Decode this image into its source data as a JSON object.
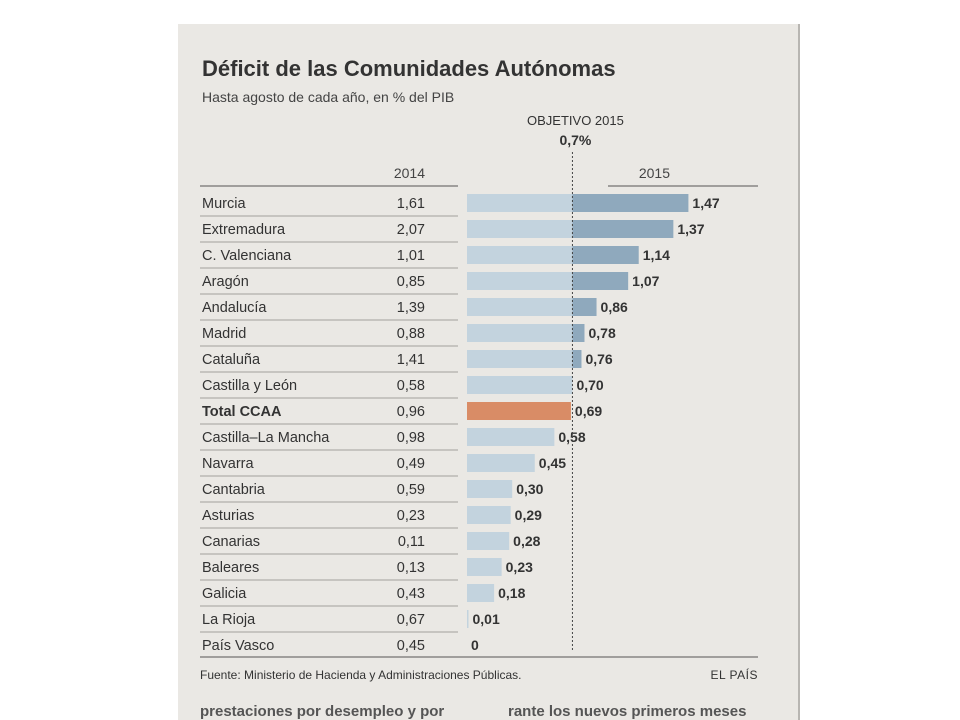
{
  "chart_data": {
    "type": "bar",
    "title": "Déficit de las Comunidades Autónomas",
    "subtitle": "Hasta agosto de cada año, en % del PIB",
    "reference": {
      "label": "OBJETIVO 2015",
      "value_label": "0,7%",
      "value": 0.7
    },
    "column_headers": {
      "y2014": "2014",
      "y2015": "2015"
    },
    "orientation": "horizontal",
    "xlim": [
      0,
      1.6
    ],
    "colors": {
      "bar": "#8fa9bd",
      "bar_total": "#d98c66",
      "bar_light": "#c3d3de"
    },
    "rows": [
      {
        "region": "Murcia",
        "v2014": "1,61",
        "v2015": "1,47",
        "value": 1.47
      },
      {
        "region": "Extremadura",
        "v2014": "2,07",
        "v2015": "1,37",
        "value": 1.37
      },
      {
        "region": "C. Valenciana",
        "v2014": "1,01",
        "v2015": "1,14",
        "value": 1.14
      },
      {
        "region": "Aragón",
        "v2014": "0,85",
        "v2015": "1,07",
        "value": 1.07
      },
      {
        "region": "Andalucía",
        "v2014": "1,39",
        "v2015": "0,86",
        "value": 0.86
      },
      {
        "region": "Madrid",
        "v2014": "0,88",
        "v2015": "0,78",
        "value": 0.78
      },
      {
        "region": "Cataluña",
        "v2014": "1,41",
        "v2015": "0,76",
        "value": 0.76
      },
      {
        "region": "Castilla y León",
        "v2014": "0,58",
        "v2015": "0,70",
        "value": 0.7
      },
      {
        "region": "Total CCAA",
        "v2014": "0,96",
        "v2015": "0,69",
        "value": 0.69,
        "total": true
      },
      {
        "region": "Castilla–La Mancha",
        "v2014": "0,98",
        "v2015": "0,58",
        "value": 0.58
      },
      {
        "region": "Navarra",
        "v2014": "0,49",
        "v2015": "0,45",
        "value": 0.45
      },
      {
        "region": "Cantabria",
        "v2014": "0,59",
        "v2015": "0,30",
        "value": 0.3
      },
      {
        "region": "Asturias",
        "v2014": "0,23",
        "v2015": "0,29",
        "value": 0.29
      },
      {
        "region": "Canarias",
        "v2014": "0,11",
        "v2015": "0,28",
        "value": 0.28
      },
      {
        "region": "Baleares",
        "v2014": "0,13",
        "v2015": "0,23",
        "value": 0.23
      },
      {
        "region": "Galicia",
        "v2014": "0,43",
        "v2015": "0,18",
        "value": 0.18
      },
      {
        "region": "La Rioja",
        "v2014": "0,67",
        "v2015": "0,01",
        "value": 0.01
      },
      {
        "region": "País Vasco",
        "v2014": "0,45",
        "v2015": "0",
        "value": 0
      }
    ],
    "source": "Fuente: Ministerio de Hacienda y Administraciones Públicas.",
    "brand": "EL PAÍS"
  },
  "page_fragment": {
    "left": "prestaciones por desempleo y por",
    "right": "rante los nuevos primeros meses"
  }
}
